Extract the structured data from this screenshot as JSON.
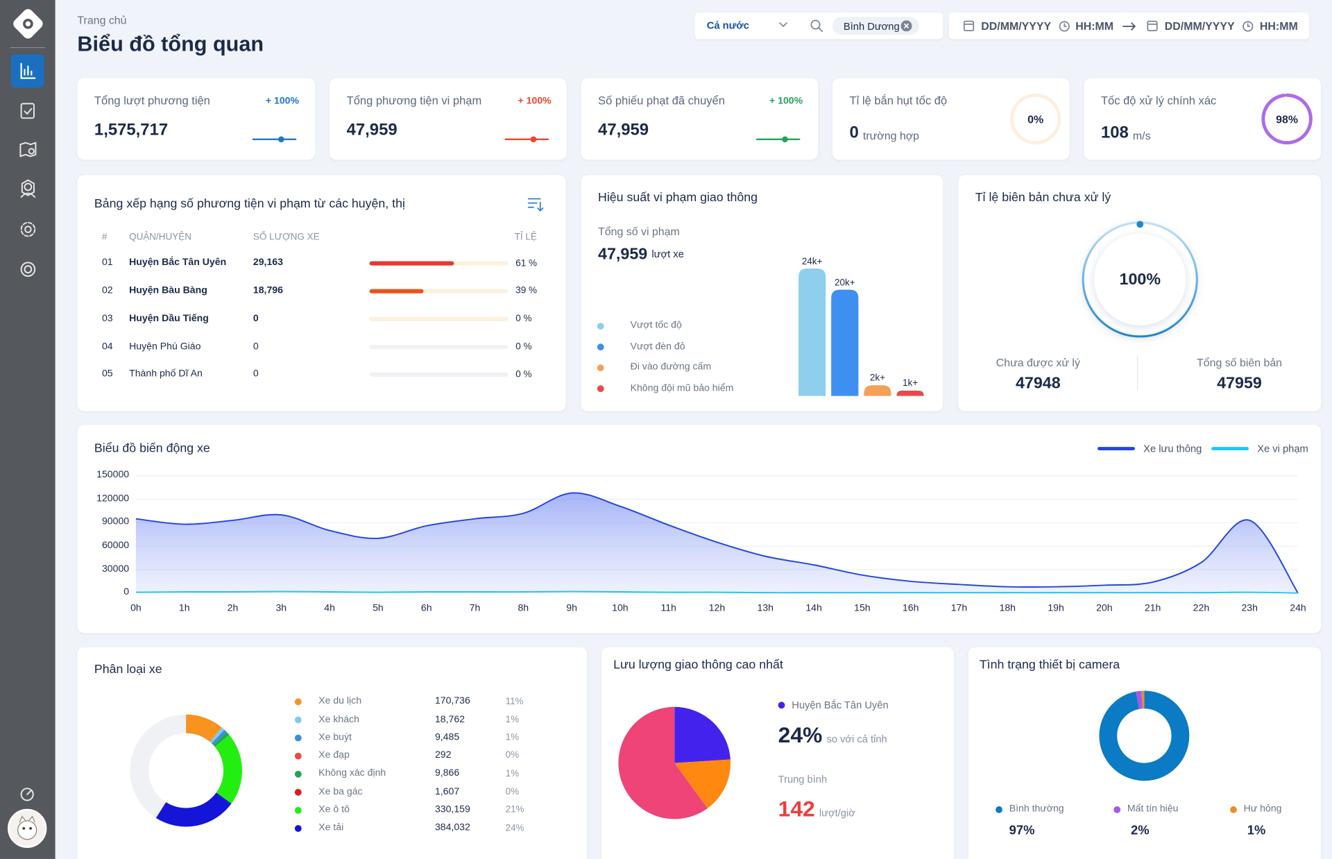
{
  "header": {
    "breadcrumb": "Trang chủ",
    "title": "Biểu đồ tổng quan"
  },
  "filters": {
    "region": "Cả nước",
    "search_tag": "Bình Dương",
    "date_from": "DD/MM/YYYY",
    "time_from": "HH:MM",
    "date_to": "DD/MM/YYYY",
    "time_to": "HH:MM"
  },
  "kpis": [
    {
      "label": "Tổng lượt phương tiện",
      "value": "1,575,717",
      "change": "+ 100%",
      "color": "#1f77c9"
    },
    {
      "label": "Tổng phương tiện vi phạm",
      "value": "47,959",
      "change": "+ 100%",
      "color": "#f0442e"
    },
    {
      "label": "Số phiếu phạt đã chuyển",
      "value": "47,959",
      "change": "+ 100%",
      "color": "#22a35a"
    }
  ],
  "ring_kpis": [
    {
      "label": "Tỉ lệ bắn hụt tốc độ",
      "value": "0",
      "unit": "trường hợp",
      "percent": 0,
      "percent_label": "0%",
      "color": "#f7b06a"
    },
    {
      "label": "Tốc độ xử lý chính xác",
      "value": "108",
      "unit": "m/s",
      "percent": 98,
      "percent_label": "98%",
      "color": "#b06be8"
    }
  ],
  "ranking": {
    "title": "Bảng xếp hạng số phương tiện vi phạm từ các huyện, thị",
    "columns": [
      "#",
      "QUẬN/HUYỆN",
      "SỐ LƯỢNG XE",
      "TỈ LỆ"
    ],
    "rows": [
      {
        "rank": "01",
        "name": "Huyện Bắc Tân Uyên",
        "count": "29,163",
        "percent": 61,
        "percent_label": "61 %",
        "color": "#e53935"
      },
      {
        "rank": "02",
        "name": "Huyện Bàu Bàng",
        "count": "18,796",
        "percent": 39,
        "percent_label": "39 %",
        "color": "#e8541c"
      },
      {
        "rank": "03",
        "name": "Huyện Dầu Tiếng",
        "count": "0",
        "percent": 0,
        "percent_label": "0 %",
        "color": "#e8541c"
      },
      {
        "rank": "04",
        "name": "Huyện Phú Giáo",
        "count": "0",
        "percent": 0,
        "percent_label": "0 %",
        "color": "#e8541c"
      },
      {
        "rank": "05",
        "name": "Thành phố Dĩ An",
        "count": "0",
        "percent": 0,
        "percent_label": "0 %",
        "color": "#e8541c"
      }
    ]
  },
  "performance": {
    "title": "Hiệu suất vi phạm giao thông",
    "total_label": "Tổng số vi phạm",
    "total": "47,959",
    "total_unit": "lượt xe",
    "series": [
      {
        "name": "Vượt tốc độ",
        "color": "#8ecfee",
        "value": 24000,
        "value_label": "24k+"
      },
      {
        "name": "Vượt đèn đỏ",
        "color": "#3f8ff0",
        "value": 20000,
        "value_label": "20k+"
      },
      {
        "name": "Đi vào đường cấm",
        "color": "#f4a056",
        "value": 2000,
        "value_label": "2k+"
      },
      {
        "name": "Không đội mũ bảo hiểm",
        "color": "#e84a4a",
        "value": 1000,
        "value_label": "1k+"
      }
    ]
  },
  "unprocessed": {
    "title": "Tỉ lệ biên bản chưa xử lý",
    "percent": 100,
    "percent_label": "100%",
    "pending_label": "Chưa được xử lý",
    "pending": 47948,
    "total_label": "Tổng số biên bản",
    "total": 47959
  },
  "traffic_chart": {
    "type": "line",
    "title": "Biểu đồ biến động xe",
    "x": [
      "0h",
      "1h",
      "2h",
      "3h",
      "4h",
      "5h",
      "6h",
      "7h",
      "8h",
      "9h",
      "10h",
      "11h",
      "12h",
      "13h",
      "14h",
      "15h",
      "16h",
      "17h",
      "18h",
      "19h",
      "20h",
      "21h",
      "22h",
      "23h",
      "24h"
    ],
    "series": [
      {
        "name": "Xe lưu thông",
        "color": "#2346e0",
        "values": [
          95000,
          88000,
          93000,
          100000,
          80000,
          70000,
          86000,
          95000,
          102000,
          128000,
          111000,
          87000,
          65000,
          47000,
          36000,
          23000,
          15000,
          11000,
          8000,
          8000,
          10000,
          14000,
          39000,
          93000,
          0
        ]
      },
      {
        "name": "Xe vi phạm",
        "color": "#1ec8f0",
        "values": [
          1000,
          1500,
          1500,
          2000,
          1500,
          1000,
          1500,
          1500,
          1500,
          2000,
          1500,
          1000,
          1000,
          500,
          500,
          500,
          500,
          500,
          500,
          500,
          500,
          500,
          500,
          1000,
          0
        ]
      }
    ],
    "ylim": [
      0,
      150000
    ],
    "yticks": [
      0,
      30000,
      60000,
      90000,
      120000,
      150000
    ],
    "grid": true
  },
  "vehicle_types": {
    "title": "Phân loại xe",
    "items": [
      {
        "name": "Xe du lịch",
        "color": "#f7931e",
        "count": "170,736",
        "percent": 11,
        "percent_label": "11%"
      },
      {
        "name": "Xe khách",
        "color": "#7ecbea",
        "count": "18,762",
        "percent": 1,
        "percent_label": "1%"
      },
      {
        "name": "Xe buýt",
        "color": "#3d8de0",
        "count": "9,485",
        "percent": 1,
        "percent_label": "1%"
      },
      {
        "name": "Xe đạp",
        "color": "#f04c3c",
        "count": "292",
        "percent": 0,
        "percent_label": "0%"
      },
      {
        "name": "Không xác định",
        "color": "#23a455",
        "count": "9,866",
        "percent": 1,
        "percent_label": "1%"
      },
      {
        "name": "Xe ba gác",
        "color": "#e01b1b",
        "count": "1,607",
        "percent": 0,
        "percent_label": "0%"
      },
      {
        "name": "Xe ô tô",
        "color": "#22ee11",
        "count": "330,159",
        "percent": 21,
        "percent_label": "21%"
      },
      {
        "name": "Xe tải",
        "color": "#1515d8",
        "count": "384,032",
        "percent": 24,
        "percent_label": "24%"
      }
    ]
  },
  "peak_traffic": {
    "title": "Lưu lượng giao thông cao nhất",
    "district": "Huyện Bắc Tân Uyên",
    "district_color": "#4422ee",
    "share": 24,
    "share_label": "24%",
    "share_note": "so với cả tỉnh",
    "avg_label": "Trung bình",
    "avg": 142,
    "avg_unit": "lượt/giờ",
    "pie": [
      {
        "color": "#4422ee",
        "value": 24
      },
      {
        "color": "#ff8811",
        "value": 16
      },
      {
        "color": "#ee4477",
        "value": 60
      }
    ]
  },
  "camera": {
    "title": "Tình trạng thiết bị camera",
    "items": [
      {
        "name": "Bình thường",
        "color": "#0a7bc4",
        "percent": 97,
        "percent_label": "97%"
      },
      {
        "name": "Mất tín hiệu",
        "color": "#a35ae6",
        "percent": 2,
        "percent_label": "2%"
      },
      {
        "name": "Hư hỏng",
        "color": "#f08a2a",
        "percent": 1,
        "percent_label": "1%"
      }
    ]
  }
}
